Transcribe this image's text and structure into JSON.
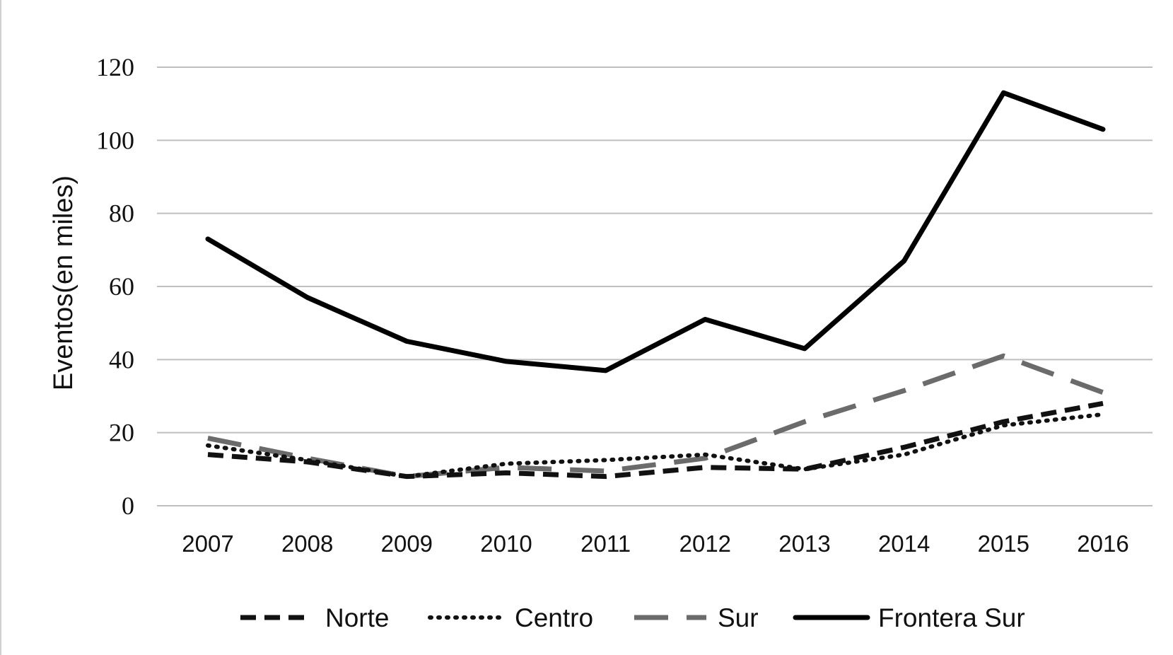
{
  "chart_data": {
    "type": "line",
    "title": "",
    "xlabel": "",
    "ylabel": "Eventos(en miles)",
    "ylim": [
      0,
      120
    ],
    "yticks": [
      "0",
      "20",
      "40",
      "60",
      "80",
      "100",
      "120"
    ],
    "categories": [
      "2007",
      "2008",
      "2009",
      "2010",
      "2011",
      "2012",
      "2013",
      "2014",
      "2015",
      "2016"
    ],
    "grid": "horizontal",
    "legend_position": "bottom",
    "series": [
      {
        "name": "Norte",
        "style": "dashed",
        "color": "#111111",
        "values": [
          14,
          12,
          8,
          9,
          8,
          10.5,
          10,
          16,
          23,
          28
        ]
      },
      {
        "name": "Centro",
        "style": "dotted",
        "color": "#111111",
        "values": [
          16.5,
          12.5,
          8,
          11.5,
          12.5,
          14,
          10,
          14,
          22,
          25
        ]
      },
      {
        "name": "Sur",
        "style": "longdash",
        "color": "#6b6b6b",
        "values": [
          18.5,
          13,
          8,
          10.5,
          9.5,
          13,
          23,
          31.5,
          41,
          31
        ]
      },
      {
        "name": "Frontera Sur",
        "style": "solid",
        "color": "#000000",
        "values": [
          73,
          57,
          45,
          39.5,
          37,
          51,
          43,
          67,
          113,
          103
        ]
      }
    ]
  }
}
